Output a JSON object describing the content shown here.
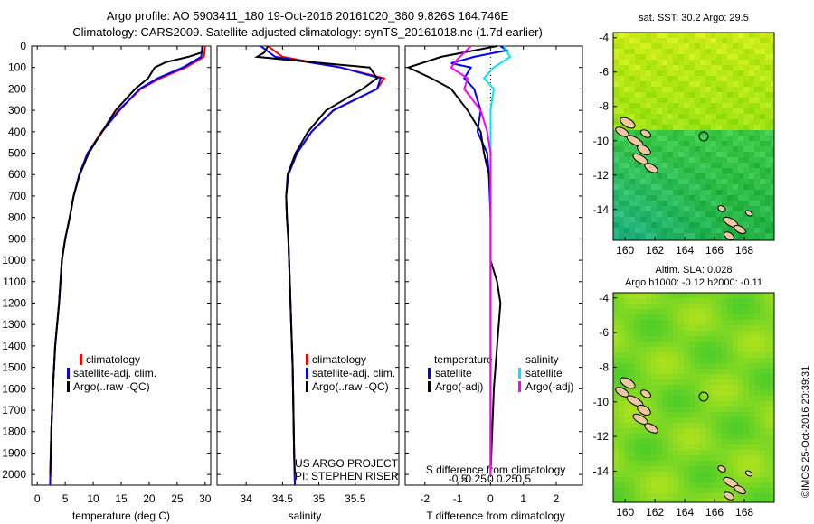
{
  "header": {
    "line1": "Argo profile: AO 5903411_180 19-Oct-2016 20161020_360 9.826S 164.746E",
    "line2": "Climatology: CARS2009. Satellite-adjusted climatology: synTS_20161018.nc (1.7d earlier)"
  },
  "colors": {
    "climatology": "#ff0000",
    "satellite": "#0000ff",
    "argo": "#000000",
    "sal_satellite": "#00e5ff",
    "sal_argo": "#ff00ff"
  },
  "y_ticks": [
    0,
    100,
    200,
    300,
    400,
    500,
    600,
    700,
    800,
    900,
    1000,
    1100,
    1200,
    1300,
    1400,
    1500,
    1600,
    1700,
    1800,
    1900,
    2000
  ],
  "chart_data": [
    {
      "type": "line",
      "xlabel": "temperature (deg C)",
      "xlim": [
        -1,
        31
      ],
      "ylim": [
        2050,
        0
      ],
      "x_ticks": [
        0,
        5,
        10,
        15,
        20,
        25,
        30
      ],
      "legend": [
        "climatology",
        "satellite-adj. clim.",
        "Argo(..raw -QC)"
      ],
      "series": [
        {
          "name": "climatology",
          "points": [
            [
              30.0,
              0
            ],
            [
              29.8,
              50
            ],
            [
              26.5,
              100
            ],
            [
              22.0,
              150
            ],
            [
              18.5,
              200
            ],
            [
              14.5,
              300
            ],
            [
              11.5,
              400
            ],
            [
              9.0,
              500
            ],
            [
              7.5,
              600
            ],
            [
              6.5,
              700
            ],
            [
              5.8,
              800
            ],
            [
              5.0,
              900
            ],
            [
              4.4,
              1000
            ],
            [
              3.9,
              1200
            ],
            [
              3.2,
              1400
            ],
            [
              2.8,
              1600
            ],
            [
              2.5,
              1800
            ],
            [
              2.3,
              2050
            ]
          ]
        },
        {
          "name": "satellite-adj. clim.",
          "points": [
            [
              29.5,
              0
            ],
            [
              29.3,
              50
            ],
            [
              26.0,
              100
            ],
            [
              21.5,
              150
            ],
            [
              18.3,
              200
            ],
            [
              14.7,
              300
            ],
            [
              11.6,
              400
            ],
            [
              9.0,
              500
            ],
            [
              7.5,
              600
            ],
            [
              6.5,
              700
            ],
            [
              5.8,
              800
            ],
            [
              5.0,
              900
            ],
            [
              4.4,
              1000
            ],
            [
              3.9,
              1200
            ],
            [
              3.2,
              1400
            ],
            [
              2.8,
              1600
            ],
            [
              2.5,
              1800
            ],
            [
              2.3,
              2050
            ]
          ]
        },
        {
          "name": "Argo(..raw -QC)",
          "points": [
            [
              29.6,
              0
            ],
            [
              29.4,
              30
            ],
            [
              27.0,
              50
            ],
            [
              23.0,
              75
            ],
            [
              21.0,
              100
            ],
            [
              19.8,
              150
            ],
            [
              17.5,
              200
            ],
            [
              14.0,
              300
            ],
            [
              11.6,
              400
            ],
            [
              9.2,
              500
            ],
            [
              7.6,
              600
            ],
            [
              6.5,
              700
            ],
            [
              5.8,
              800
            ],
            [
              5.0,
              900
            ],
            [
              4.4,
              1000
            ],
            [
              3.9,
              1200
            ],
            [
              3.2,
              1400
            ],
            [
              2.8,
              1600
            ],
            [
              2.5,
              1800
            ],
            [
              2.3,
              2000
            ]
          ]
        }
      ]
    },
    {
      "type": "line",
      "xlabel": "salinity",
      "xlim": [
        33.6,
        36.1
      ],
      "ylim": [
        2050,
        0
      ],
      "x_ticks": [
        34,
        34.5,
        35,
        35.5
      ],
      "legend": [
        "climatology",
        "satellite-adj. clim.",
        "Argo(..raw -QC)"
      ],
      "series": [
        {
          "name": "climatology",
          "points": [
            [
              34.3,
              0
            ],
            [
              34.5,
              50
            ],
            [
              35.3,
              100
            ],
            [
              35.9,
              150
            ],
            [
              35.8,
              200
            ],
            [
              35.2,
              300
            ],
            [
              34.9,
              400
            ],
            [
              34.7,
              500
            ],
            [
              34.58,
              600
            ],
            [
              34.55,
              700
            ],
            [
              34.56,
              800
            ],
            [
              34.58,
              900
            ],
            [
              34.6,
              1100
            ],
            [
              34.62,
              1300
            ],
            [
              34.64,
              1500
            ],
            [
              34.65,
              1700
            ],
            [
              34.66,
              1900
            ],
            [
              34.67,
              2050
            ]
          ]
        },
        {
          "name": "satellite-adj. clim.",
          "points": [
            [
              34.2,
              0
            ],
            [
              34.4,
              50
            ],
            [
              35.3,
              100
            ],
            [
              35.85,
              150
            ],
            [
              35.8,
              200
            ],
            [
              35.2,
              300
            ],
            [
              34.9,
              400
            ],
            [
              34.7,
              500
            ],
            [
              34.58,
              600
            ],
            [
              34.55,
              700
            ],
            [
              34.56,
              800
            ],
            [
              34.58,
              900
            ],
            [
              34.6,
              1100
            ],
            [
              34.62,
              1300
            ],
            [
              34.64,
              1500
            ],
            [
              34.65,
              1700
            ],
            [
              34.66,
              1900
            ],
            [
              34.67,
              2050
            ]
          ]
        },
        {
          "name": "Argo(..raw -QC)",
          "points": [
            [
              34.3,
              0
            ],
            [
              34.25,
              30
            ],
            [
              34.15,
              50
            ],
            [
              34.9,
              75
            ],
            [
              35.7,
              100
            ],
            [
              35.8,
              150
            ],
            [
              35.6,
              200
            ],
            [
              35.1,
              300
            ],
            [
              34.85,
              400
            ],
            [
              34.68,
              500
            ],
            [
              34.57,
              600
            ],
            [
              34.55,
              700
            ],
            [
              34.56,
              800
            ],
            [
              34.58,
              900
            ],
            [
              34.6,
              1100
            ],
            [
              34.62,
              1300
            ],
            [
              34.64,
              1500
            ],
            [
              34.65,
              1700
            ],
            [
              34.66,
              1900
            ],
            [
              34.67,
              2000
            ]
          ]
        }
      ]
    },
    {
      "type": "line",
      "xlabel": "T difference from climatology",
      "x2label": "S difference from climatology",
      "xlim": [
        -2.6,
        2.8
      ],
      "ylim": [
        2050,
        0
      ],
      "x_ticks": [
        -2,
        -1,
        0,
        1,
        2
      ],
      "x2_ticks": [
        {
          "v": -1,
          "label": "-0.5"
        },
        {
          "v": -0.5,
          "label": "-0.25"
        },
        {
          "v": 0,
          "label": "0"
        },
        {
          "v": 0.5,
          "label": "0.25"
        },
        {
          "v": 1,
          "label": "0.5"
        }
      ],
      "legend_title_t": "temperature",
      "legend_title_s": "salinity",
      "legend_t": [
        "satellite",
        "Argo(-adj)"
      ],
      "legend_s": [
        "satellite",
        "Argo(-adj)"
      ],
      "series": [
        {
          "name": "temperature satellite",
          "points": [
            [
              0.3,
              0
            ],
            [
              0.5,
              20
            ],
            [
              -0.5,
              50
            ],
            [
              -1.2,
              80
            ],
            [
              -0.6,
              100
            ],
            [
              -0.8,
              150
            ],
            [
              -0.5,
              200
            ],
            [
              -0.3,
              300
            ],
            [
              -0.4,
              400
            ],
            [
              -0.1,
              500
            ],
            [
              -0.05,
              600
            ],
            [
              0,
              800
            ],
            [
              0,
              2000
            ]
          ]
        },
        {
          "name": "temperature Argo(-adj)",
          "points": [
            [
              0.2,
              0
            ],
            [
              -1.5,
              50
            ],
            [
              -2.5,
              100
            ],
            [
              -1.8,
              150
            ],
            [
              -1.2,
              200
            ],
            [
              -0.7,
              300
            ],
            [
              -0.3,
              400
            ],
            [
              -0.2,
              500
            ],
            [
              -0.05,
              600
            ],
            [
              0,
              700
            ],
            [
              0,
              1000
            ],
            [
              0.2,
              1100
            ],
            [
              0.3,
              1200
            ],
            [
              0.2,
              1400
            ],
            [
              0.1,
              1600
            ],
            [
              0.05,
              1800
            ],
            [
              0,
              2000
            ]
          ]
        },
        {
          "name": "salinity satellite",
          "points": [
            [
              0.4,
              0
            ],
            [
              0.6,
              50
            ],
            [
              0.1,
              100
            ],
            [
              -0.2,
              150
            ],
            [
              0.1,
              200
            ],
            [
              0,
              300
            ],
            [
              0,
              400
            ],
            [
              0,
              2000
            ]
          ]
        },
        {
          "name": "salinity Argo(-adj)",
          "points": [
            [
              -0.6,
              0
            ],
            [
              -1.0,
              60
            ],
            [
              -1.2,
              100
            ],
            [
              -0.7,
              150
            ],
            [
              -0.8,
              200
            ],
            [
              -0.3,
              300
            ],
            [
              -0.1,
              400
            ],
            [
              0,
              500
            ],
            [
              0,
              2000
            ]
          ]
        }
      ]
    },
    {
      "type": "heatmap",
      "title": "sat. SST: 30.2  Argo: 29.5",
      "x_ticks": [
        160,
        162,
        164,
        166,
        168
      ],
      "y_ticks": [
        -4,
        -6,
        -8,
        -10,
        -12,
        -14
      ]
    },
    {
      "type": "heatmap",
      "title": "Altim. SLA: 0.028",
      "subtitle": "Argo h1000: -0.12  h2000: -0.11",
      "x_ticks": [
        160,
        162,
        164,
        166,
        168
      ],
      "y_ticks": [
        -4,
        -6,
        -8,
        -10,
        -12,
        -14
      ]
    }
  ],
  "notes": {
    "project": "US ARGO PROJECT",
    "pi": "PI: STEPHEN RISER",
    "imos": "©IMOS 25-Oct-2016 20:39:31"
  }
}
